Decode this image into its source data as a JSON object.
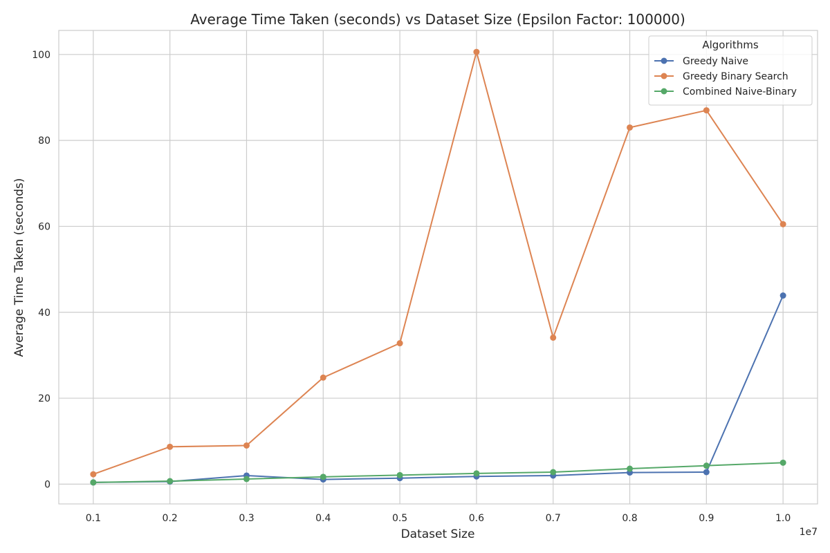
{
  "chart_data": {
    "type": "line",
    "title": "Average Time Taken (seconds) vs Dataset Size (Epsilon Factor: 100000)",
    "xlabel": "Dataset Size",
    "ylabel": "Average Time Taken (seconds)",
    "x_offset_label": "1e7",
    "x": [
      1000000,
      2000000,
      3000000,
      4000000,
      5000000,
      6000000,
      7000000,
      8000000,
      9000000,
      10000000
    ],
    "x_tick_labels": [
      "0.1",
      "0.2",
      "0.3",
      "0.4",
      "0.5",
      "0.6",
      "0.7",
      "0.8",
      "0.9",
      "1.0"
    ],
    "xlim": [
      550000,
      10450000
    ],
    "y_ticks": [
      0,
      20,
      40,
      60,
      80,
      100
    ],
    "ylim": [
      -4.6,
      105.6
    ],
    "grid": true,
    "legend": {
      "title": "Algorithms",
      "placement": "top-right"
    },
    "series": [
      {
        "name": "Greedy Naive",
        "color": "#4c72b0",
        "values": [
          0.4,
          0.6,
          2.0,
          1.1,
          1.4,
          1.8,
          2.0,
          2.7,
          2.8,
          43.9
        ]
      },
      {
        "name": "Greedy Binary Search",
        "color": "#dd8452",
        "values": [
          2.3,
          8.7,
          9.0,
          24.8,
          32.8,
          100.6,
          34.1,
          83.0,
          87.0,
          60.5
        ]
      },
      {
        "name": "Combined Naive-Binary",
        "color": "#55a868",
        "values": [
          0.4,
          0.7,
          1.2,
          1.7,
          2.1,
          2.5,
          2.8,
          3.6,
          4.3,
          5.0
        ]
      }
    ]
  }
}
